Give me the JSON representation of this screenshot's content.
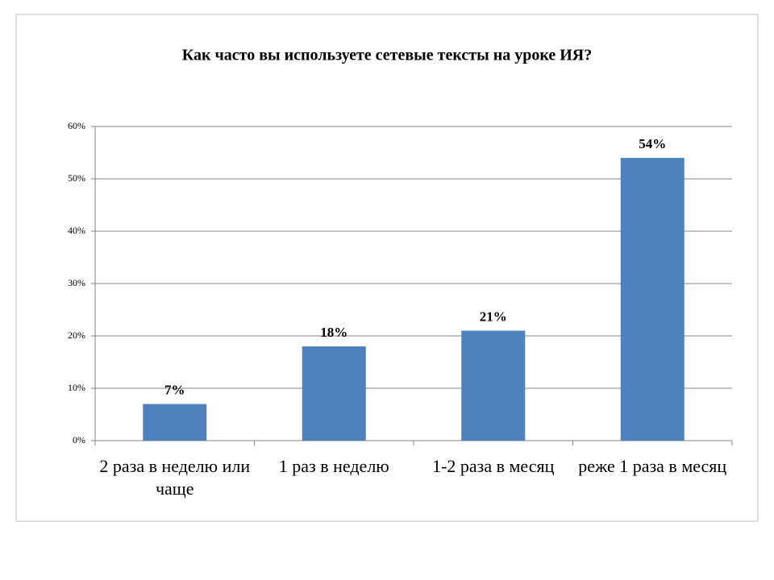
{
  "chart_data": {
    "type": "bar",
    "title": "Как часто вы используете сетевые тексты на уроке ИЯ?",
    "categories": [
      "2 раза в неделю или чаще",
      "1 раз в неделю",
      "1-2 раза в месяц",
      "реже 1 раза в месяц"
    ],
    "values": [
      7,
      18,
      21,
      54
    ],
    "value_labels": [
      "7%",
      "18%",
      "21%",
      "54%"
    ],
    "color": "#4f81bd",
    "ylim": [
      0,
      60
    ],
    "yticks": [
      {
        "value": 0,
        "label": "0%"
      },
      {
        "value": 10,
        "label": "10%"
      },
      {
        "value": 20,
        "label": "20%"
      },
      {
        "value": 30,
        "label": "30%"
      },
      {
        "value": 40,
        "label": "40%"
      },
      {
        "value": 50,
        "label": "50%"
      },
      {
        "value": 60,
        "label": "60%"
      }
    ],
    "grid": true
  }
}
